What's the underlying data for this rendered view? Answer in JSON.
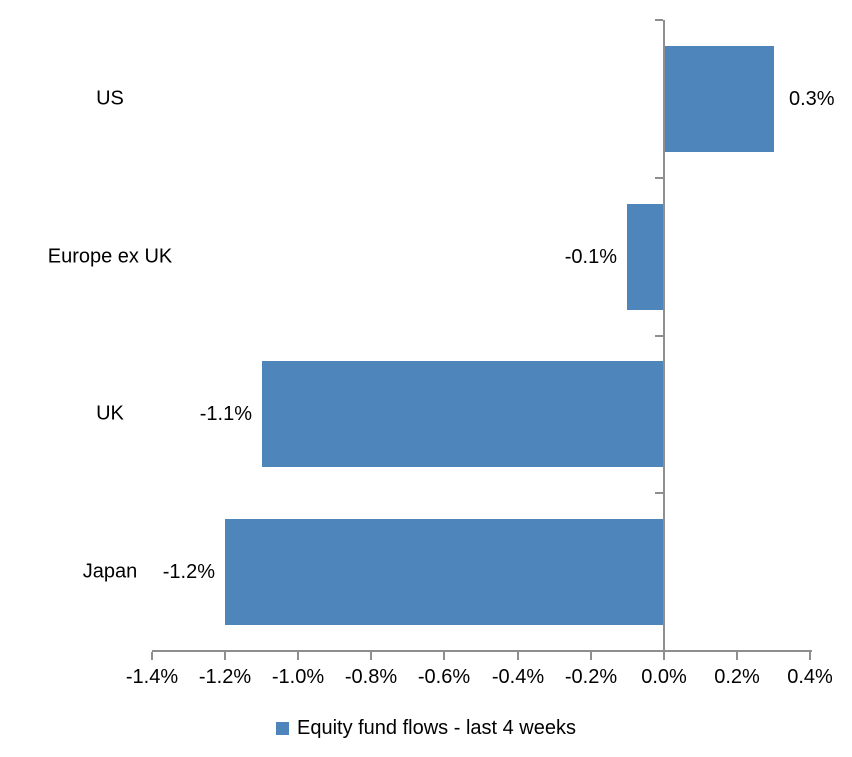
{
  "chart_data": {
    "type": "bar",
    "orientation": "horizontal",
    "title": "",
    "categories": [
      "US",
      "Europe ex UK",
      "UK",
      "Japan"
    ],
    "series": [
      {
        "name": "Equity fund flows - last 4 weeks",
        "values": [
          0.3,
          -0.1,
          -1.1,
          -1.2
        ],
        "data_labels": [
          "0.3%",
          "-0.1%",
          "-1.1%",
          "-1.2%"
        ]
      }
    ],
    "x_axis": {
      "min": -1.4,
      "max": 0.4,
      "step": 0.2,
      "tick_labels": [
        "-1.4%",
        "-1.2%",
        "-1.0%",
        "-0.8%",
        "-0.6%",
        "-0.4%",
        "-0.2%",
        "0.0%",
        "0.2%",
        "0.4%"
      ]
    },
    "grid": "off",
    "legend_position": "bottom",
    "colors": {
      "bar": "#4e86bc",
      "axis": "#8e8e8e",
      "text": "#000000",
      "background": "#ffffff"
    }
  },
  "legend": {
    "label": "Equity fund flows - last 4 weeks"
  }
}
